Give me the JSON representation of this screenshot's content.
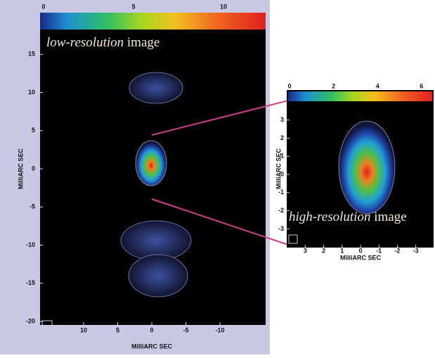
{
  "left_panel": {
    "colorbar_ticks": [
      0,
      5,
      10
    ],
    "title_italic": "low-resolution",
    "title_rest": "image",
    "yticks": [
      15,
      10,
      5,
      0,
      -5,
      -10,
      -15,
      -20
    ],
    "xticks": [
      10,
      5,
      0,
      -5,
      -10
    ],
    "xlabel": "MilliARC SEC",
    "ylabel": "MilliARC SEC"
  },
  "right_panel": {
    "colorbar_ticks": [
      0,
      2,
      4,
      6
    ],
    "title_italic": "high-resolution",
    "title_rest": "image",
    "yticks": [
      3,
      2,
      1,
      0,
      -1,
      -2,
      -3
    ],
    "xticks": [
      3,
      2,
      1,
      0,
      -1,
      -2,
      -3
    ],
    "xlabel": "MilliARC SEC",
    "ylabel": "MilliARC SEC"
  }
}
